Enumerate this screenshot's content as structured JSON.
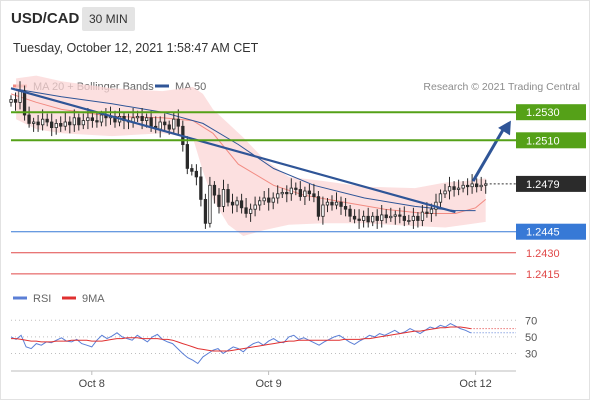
{
  "header": {
    "symbol": "USD/CAD",
    "timeframe": "30 MIN",
    "timestamp": "Tuesday, October 12, 2021 1:58:47 AM CET"
  },
  "chart_data": [
    {
      "type": "candlestick",
      "legend_position": "top-left",
      "legend": [
        {
          "label": "MA 20 + Bollinger Bands",
          "color": "#f28b82"
        },
        {
          "label": "MA 50",
          "color": "#2f5597"
        }
      ],
      "credit": "Research © 2021 Trading Central",
      "y_range": [
        1.2405,
        1.256
      ],
      "x_range": [
        0,
        100
      ],
      "x_ticks": [
        {
          "label": "Oct 8",
          "x": 16
        },
        {
          "label": "Oct 9",
          "x": 51
        },
        {
          "label": "Oct 12",
          "x": 92
        }
      ],
      "closes": [
        1.2539,
        1.2537,
        1.2545,
        1.2528,
        1.2522,
        1.2523,
        1.2521,
        1.2525,
        1.2523,
        1.2519,
        1.2522,
        1.252,
        1.2523,
        1.2521,
        1.2526,
        1.2521,
        1.2524,
        1.2526,
        1.2524,
        1.2523,
        1.2528,
        1.2526,
        1.2527,
        1.2523,
        1.2527,
        1.2524,
        1.2523,
        1.2526,
        1.2527,
        1.2524,
        1.2526,
        1.252,
        1.2518,
        1.2523,
        1.2521,
        1.2518,
        1.2525,
        1.252,
        1.2507,
        1.249,
        1.2488,
        1.2484,
        1.2468,
        1.2451,
        1.2478,
        1.2471,
        1.2463,
        1.2475,
        1.2466,
        1.2464,
        1.2467,
        1.2462,
        1.2458,
        1.2461,
        1.2464,
        1.2467,
        1.2469,
        1.2466,
        1.2469,
        1.2472,
        1.2473,
        1.2472,
        1.2476,
        1.2475,
        1.247,
        1.2474,
        1.2472,
        1.247,
        1.2456,
        1.2464,
        1.2466,
        1.2464,
        1.2466,
        1.2463,
        1.2461,
        1.2456,
        1.2454,
        1.2453,
        1.2456,
        1.2452,
        1.2456,
        1.2453,
        1.2457,
        1.2455,
        1.2456,
        1.2457,
        1.2456,
        1.2453,
        1.2453,
        1.2456,
        1.2453,
        1.2459,
        1.2458,
        1.2461,
        1.2466,
        1.2472,
        1.2474,
        1.2477,
        1.2475,
        1.2476,
        1.2478,
        1.2477,
        1.2479,
        1.2477,
        1.2478,
        1.2479
      ],
      "ma20": {
        "x": [
          0,
          5,
          10,
          20,
          30,
          36,
          40,
          45,
          52,
          58,
          66,
          74,
          82,
          88,
          92,
          94
        ],
        "y": [
          1.2543,
          1.2537,
          1.2532,
          1.2527,
          1.2526,
          1.2524,
          1.2515,
          1.2493,
          1.2478,
          1.2471,
          1.2466,
          1.2461,
          1.2458,
          1.2458,
          1.2462,
          1.2468
        ]
      },
      "ma50": {
        "x": [
          0,
          10,
          20,
          30,
          38,
          45,
          52,
          60,
          70,
          80,
          88,
          92
        ],
        "y": [
          1.2547,
          1.2541,
          1.2536,
          1.253,
          1.2522,
          1.2507,
          1.249,
          1.2478,
          1.2469,
          1.2463,
          1.246,
          1.246
        ]
      },
      "bollinger_upper": {
        "x": [
          1,
          5,
          10,
          20,
          30,
          36,
          38,
          40,
          43,
          46,
          50,
          55,
          62,
          70,
          80,
          86,
          90,
          94
        ],
        "y": [
          1.2554,
          1.2556,
          1.2552,
          1.2547,
          1.2545,
          1.2548,
          1.2543,
          1.2532,
          1.2522,
          1.2512,
          1.2497,
          1.2484,
          1.2481,
          1.2477,
          1.2476,
          1.248,
          1.2481,
          1.2483
        ]
      },
      "bollinger_lower": {
        "x": [
          1,
          5,
          10,
          20,
          30,
          36,
          38,
          40,
          43,
          46,
          50,
          55,
          62,
          70,
          80,
          86,
          90,
          94
        ],
        "y": [
          1.2525,
          1.2518,
          1.2515,
          1.2513,
          1.2515,
          1.2512,
          1.2488,
          1.2468,
          1.245,
          1.2442,
          1.2446,
          1.245,
          1.2451,
          1.2451,
          1.2449,
          1.2448,
          1.245,
          1.2452
        ]
      },
      "trendline": {
        "x": [
          0,
          88
        ],
        "y": [
          1.2547,
          1.2459
        ]
      },
      "forecast_arrow": {
        "x": [
          91.5,
          99
        ],
        "y": [
          1.2481,
          1.2524
        ]
      },
      "last_price_line": {
        "value": 1.2479,
        "label": "1.2479"
      },
      "levels": [
        {
          "label": "1.2530",
          "value": 1.253,
          "color": "#55a118",
          "type": "resistance"
        },
        {
          "label": "1.2510",
          "value": 1.251,
          "color": "#55a118",
          "type": "resistance"
        },
        {
          "label": "1.2445",
          "value": 1.2445,
          "color": "#3779d6",
          "type": "pivot"
        },
        {
          "label": "1.2430",
          "value": 1.243,
          "color": "#e04848",
          "type": "support"
        },
        {
          "label": "1.2415",
          "value": 1.2415,
          "color": "#e04848",
          "type": "support"
        }
      ]
    },
    {
      "type": "line",
      "legend": [
        {
          "label": "RSI",
          "color": "#5b7fd6"
        },
        {
          "label": "9MA",
          "color": "#e03030"
        }
      ],
      "y_range": [
        15,
        80
      ],
      "y_ticks": [
        70,
        50,
        30
      ],
      "x_range": [
        0,
        100
      ],
      "series": [
        {
          "name": "RSI",
          "color": "#5b7fd6",
          "values": [
            50,
            47,
            52,
            38,
            36,
            42,
            40,
            44,
            43,
            46,
            49,
            45,
            44,
            47,
            42,
            40,
            38,
            46,
            52,
            48,
            51,
            55,
            50,
            48,
            46,
            52,
            48,
            44,
            50,
            53,
            47,
            44,
            42,
            36,
            30,
            25,
            22,
            18,
            26,
            30,
            34,
            36,
            30,
            34,
            38,
            36,
            32,
            38,
            42,
            44,
            40,
            45,
            48,
            44,
            43,
            50,
            52,
            47,
            49,
            46,
            43,
            40,
            44,
            47,
            50,
            52,
            48,
            44,
            41,
            45,
            48,
            52,
            50,
            54,
            52,
            55,
            58,
            54,
            56,
            60,
            57,
            54,
            58,
            62,
            60,
            64,
            62,
            66,
            63,
            60,
            58,
            55
          ]
        },
        {
          "name": "9MA",
          "color": "#e03030",
          "values": [
            48,
            48,
            47,
            46,
            45,
            45,
            44,
            44,
            44,
            45,
            45,
            45,
            46,
            46,
            46,
            46,
            45,
            45,
            45,
            46,
            47,
            48,
            48,
            49,
            49,
            49,
            48,
            48,
            48,
            48,
            47,
            47,
            46,
            44,
            42,
            40,
            38,
            36,
            35,
            34,
            33,
            33,
            33,
            33,
            34,
            35,
            36,
            37,
            38,
            39,
            40,
            41,
            42,
            43,
            44,
            45,
            45,
            46,
            46,
            46,
            46,
            46,
            46,
            46,
            46,
            46,
            47,
            47,
            47,
            47,
            48,
            48,
            49,
            50,
            51,
            52,
            53,
            54,
            55,
            56,
            57,
            57,
            58,
            59,
            60,
            61,
            61,
            62,
            62,
            62,
            61,
            60
          ]
        }
      ]
    }
  ]
}
